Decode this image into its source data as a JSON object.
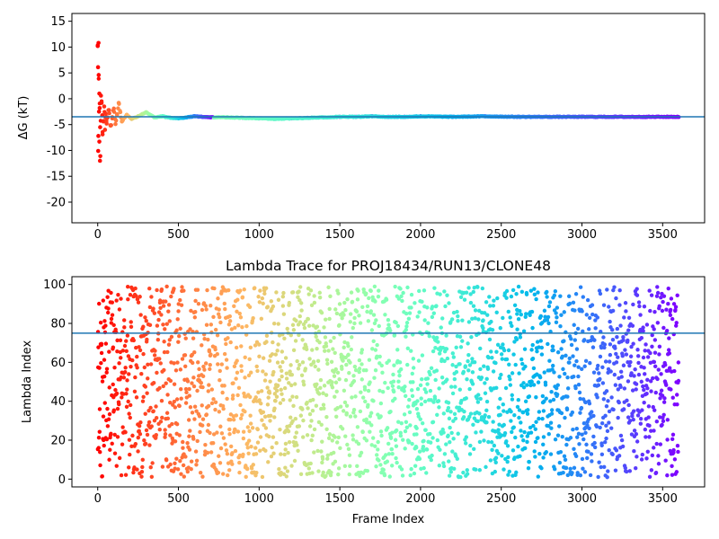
{
  "chart_data": [
    {
      "type": "scatter",
      "title": "",
      "xlabel": "",
      "ylabel": "ΔG (kT)",
      "xlim": [
        -160,
        3760
      ],
      "ylim": [
        -24,
        16.5
      ],
      "x_ticks": [
        "0",
        "500",
        "1000",
        "1500",
        "2000",
        "2500",
        "3000",
        "3500"
      ],
      "y_ticks": [
        "15",
        "10",
        "5",
        "0",
        "-5",
        "-10",
        "-15",
        "-20"
      ],
      "hline": -3.5,
      "hline_color": "#1f77b4",
      "colormap": "rainbow",
      "points": [
        [
          0,
          10.2
        ],
        [
          5,
          10.8
        ],
        [
          2,
          6.1
        ],
        [
          6,
          4.6
        ],
        [
          10,
          1.0
        ],
        [
          12,
          -1.8
        ],
        [
          8,
          -2.5
        ],
        [
          15,
          -5.5
        ],
        [
          4,
          -7.2
        ],
        [
          10,
          -8.3
        ],
        [
          3,
          -10.1
        ],
        [
          16,
          -11.1
        ],
        [
          14,
          -12.0
        ],
        [
          20,
          0.6
        ],
        [
          24,
          -0.8
        ],
        [
          28,
          -3.2
        ],
        [
          30,
          -6.9
        ],
        [
          35,
          -4.4
        ],
        [
          40,
          -1.5
        ],
        [
          45,
          -6.0
        ],
        [
          50,
          -2.9
        ],
        [
          55,
          -4.8
        ],
        [
          60,
          -3.6
        ],
        [
          70,
          -2.2
        ],
        [
          80,
          -5.2
        ],
        [
          90,
          -3.8
        ],
        [
          100,
          -1.9
        ],
        [
          110,
          -4.9
        ],
        [
          120,
          -3.0
        ],
        [
          130,
          -0.8
        ],
        [
          140,
          -2.6
        ],
        [
          150,
          -4.4
        ],
        [
          180,
          -3.1
        ],
        [
          210,
          -3.9
        ],
        [
          250,
          -3.4
        ],
        [
          300,
          -2.6
        ],
        [
          350,
          -3.6
        ],
        [
          400,
          -3.4
        ],
        [
          450,
          -3.7
        ],
        [
          500,
          -3.8
        ],
        [
          600,
          -3.4
        ],
        [
          700,
          -3.6
        ],
        [
          800,
          -3.6
        ],
        [
          900,
          -3.7
        ],
        [
          1000,
          -3.8
        ],
        [
          1100,
          -3.9
        ],
        [
          1200,
          -3.8
        ],
        [
          1300,
          -3.7
        ],
        [
          1400,
          -3.6
        ],
        [
          1500,
          -3.5
        ],
        [
          1600,
          -3.5
        ],
        [
          1700,
          -3.4
        ],
        [
          1800,
          -3.5
        ],
        [
          1900,
          -3.5
        ],
        [
          2000,
          -3.4
        ],
        [
          2200,
          -3.5
        ],
        [
          2400,
          -3.4
        ],
        [
          2600,
          -3.5
        ],
        [
          2800,
          -3.5
        ],
        [
          3000,
          -3.5
        ],
        [
          3200,
          -3.5
        ],
        [
          3400,
          -3.5
        ],
        [
          3590,
          -3.5
        ]
      ]
    },
    {
      "type": "scatter",
      "title": "Lambda Trace for PROJ18434/RUN13/CLONE48",
      "xlabel": "Frame Index",
      "ylabel": "Lambda Index",
      "xlim": [
        -160,
        3760
      ],
      "ylim": [
        -4,
        104
      ],
      "x_ticks": [
        "0",
        "500",
        "1000",
        "1500",
        "2000",
        "2500",
        "3000",
        "3500"
      ],
      "y_ticks": [
        "100",
        "80",
        "60",
        "40",
        "20",
        "0"
      ],
      "hline": 75,
      "hline_color": "#1f77b4",
      "colormap": "rainbow",
      "frames": [
        0,
        3600
      ],
      "lambda_range": [
        1,
        99
      ]
    }
  ]
}
